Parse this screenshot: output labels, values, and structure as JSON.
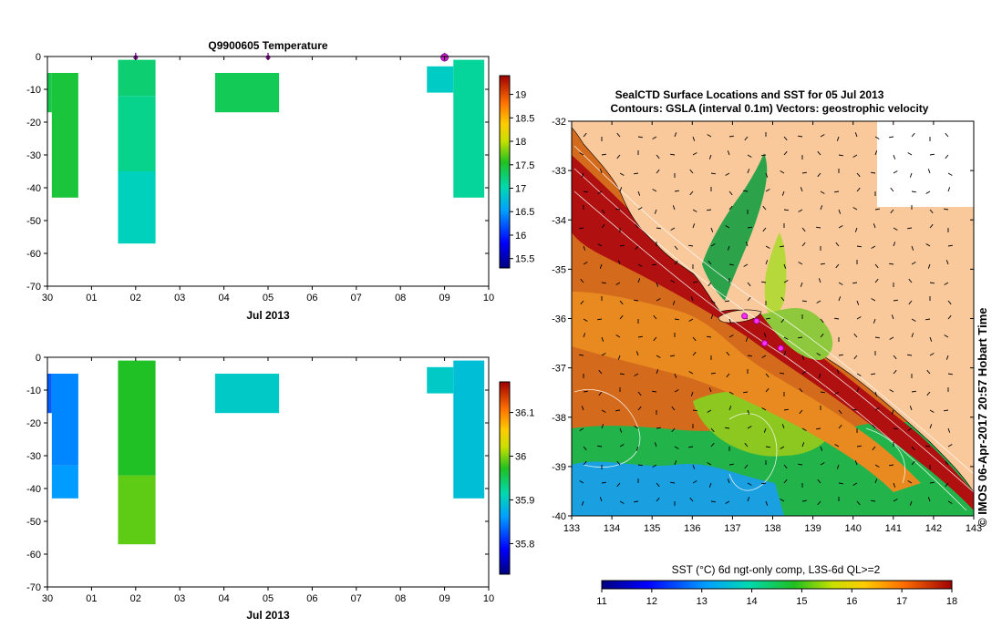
{
  "chart_data": [
    {
      "type": "heatmap",
      "title": "Q9900605  Temperature",
      "xlabel": "Jul 2013",
      "x_tick_labels": [
        "30",
        "01",
        "02",
        "03",
        "04",
        "05",
        "06",
        "07",
        "08",
        "09",
        "10"
      ],
      "y_tick_labels": [
        "0",
        "-10",
        "-20",
        "-30",
        "-40",
        "-50",
        "-60",
        "-70"
      ],
      "ylim": [
        -70,
        0
      ],
      "colorbar": {
        "ticks": [
          "15.5",
          "16",
          "16.5",
          "17",
          "17.5",
          "18",
          "18.5",
          "19"
        ],
        "range": [
          15.3,
          19.4
        ]
      },
      "markers_at_day": [
        2.0,
        5.0,
        9.0
      ],
      "profiles": [
        {
          "day_start": 0.0,
          "day_end": 0.1,
          "depth_top": -5,
          "depth_bottom": -17,
          "value": 17.4
        },
        {
          "day_start": 0.1,
          "day_end": 0.7,
          "depth_top": -5,
          "depth_bottom": -43,
          "value": 17.45
        },
        {
          "day_start": 1.6,
          "day_end": 2.45,
          "depth_top": -1,
          "depth_bottom": -12,
          "value": 17.25
        },
        {
          "day_start": 1.6,
          "day_end": 2.45,
          "depth_top": -12,
          "depth_bottom": -35,
          "value": 17.15
        },
        {
          "day_start": 1.6,
          "day_end": 2.45,
          "depth_top": -35,
          "depth_bottom": -57,
          "value": 16.95
        },
        {
          "day_start": 3.8,
          "day_end": 5.25,
          "depth_top": -5,
          "depth_bottom": -17,
          "value": 17.35
        },
        {
          "day_start": 8.6,
          "day_end": 9.2,
          "depth_top": -3,
          "depth_bottom": -11,
          "value": 16.9
        },
        {
          "day_start": 9.2,
          "day_end": 9.9,
          "depth_top": -1,
          "depth_bottom": -43,
          "value": 17.1
        }
      ]
    },
    {
      "type": "heatmap",
      "xlabel": "Jul 2013",
      "x_tick_labels": [
        "30",
        "01",
        "02",
        "03",
        "04",
        "05",
        "06",
        "07",
        "08",
        "09",
        "10"
      ],
      "y_tick_labels": [
        "0",
        "-10",
        "-20",
        "-30",
        "-40",
        "-50",
        "-60",
        "-70"
      ],
      "ylim": [
        -70,
        0
      ],
      "colorbar": {
        "ticks": [
          "35.8",
          "35.9",
          "36",
          "36.1"
        ],
        "range": [
          35.73,
          36.17
        ]
      },
      "profiles": [
        {
          "day_start": 0.0,
          "day_end": 0.1,
          "depth_top": -5,
          "depth_bottom": -17,
          "value": 35.83
        },
        {
          "day_start": 0.1,
          "day_end": 0.7,
          "depth_top": -5,
          "depth_bottom": -33,
          "value": 35.85
        },
        {
          "day_start": 0.1,
          "day_end": 0.7,
          "depth_top": -33,
          "depth_bottom": -43,
          "value": 35.86
        },
        {
          "day_start": 1.6,
          "day_end": 2.45,
          "depth_top": -1,
          "depth_bottom": -36,
          "value": 35.97
        },
        {
          "day_start": 1.6,
          "day_end": 2.45,
          "depth_top": -36,
          "depth_bottom": -57,
          "value": 35.99
        },
        {
          "day_start": 3.8,
          "day_end": 5.25,
          "depth_top": -5,
          "depth_bottom": -17,
          "value": 35.9
        },
        {
          "day_start": 8.6,
          "day_end": 9.2,
          "depth_top": -3,
          "depth_bottom": -11,
          "value": 35.9
        },
        {
          "day_start": 9.2,
          "day_end": 9.9,
          "depth_top": -1,
          "depth_bottom": -43,
          "value": 35.89
        }
      ]
    },
    {
      "type": "heatmap",
      "title": "SealCTD Surface Locations and SST for 05 Jul 2013",
      "subtitle": "Contours: GSLA (interval 0.1m) Vectors: geostrophic velocity",
      "x_tick_labels": [
        "133",
        "134",
        "135",
        "136",
        "137",
        "138",
        "139",
        "140",
        "141",
        "142",
        "143"
      ],
      "y_tick_labels": [
        "-32",
        "-33",
        "-34",
        "-35",
        "-36",
        "-37",
        "-38",
        "-39",
        "-40"
      ],
      "xlim": [
        133,
        143
      ],
      "ylim": [
        -40,
        -32
      ],
      "colorbar": {
        "label": "SST (°C) 6d ngt-only comp, L3S-6d QL>=2",
        "ticks": [
          "11",
          "12",
          "13",
          "14",
          "15",
          "16",
          "17",
          "18"
        ],
        "range": [
          11,
          18
        ]
      },
      "seal_locations": [
        {
          "lon": 137.3,
          "lat": -35.95
        },
        {
          "lon": 137.6,
          "lat": -36.05
        },
        {
          "lon": 137.8,
          "lat": -36.5
        },
        {
          "lon": 138.2,
          "lat": -36.6
        }
      ],
      "credit": "© IMOS 06-Apr-2017 20:57 Hobart Time"
    }
  ]
}
